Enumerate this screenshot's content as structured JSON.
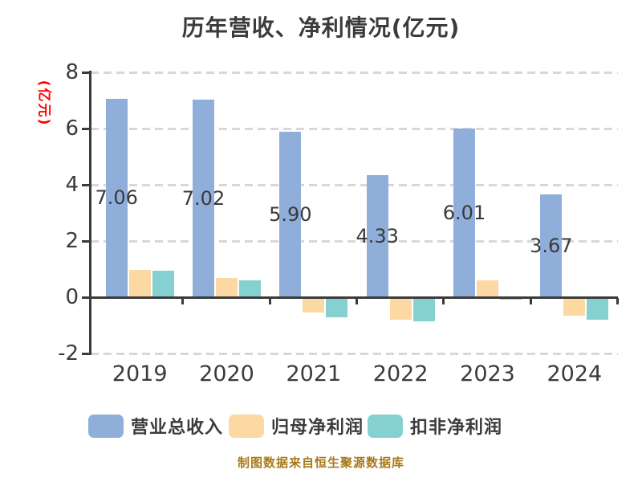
{
  "title": "历年营收、净利情况(亿元)",
  "caption": "制图数据来自恒生聚源数据库",
  "colors": {
    "revenue": "#8FAEDA",
    "parent_net_profit": "#FCD9A3",
    "non_recurring_net_profit": "#85D1D1",
    "axis_text": "#3B3B3B",
    "gridline": "#D8D8D8",
    "y_axis_label": "#FF0000",
    "caption_text": "#A8791A"
  },
  "chart_data": {
    "type": "bar",
    "title": "历年营收、净利情况(亿元)",
    "ylabel": "(亿元)",
    "xlabel": "",
    "categories": [
      "2019",
      "2020",
      "2021",
      "2022",
      "2023",
      "2024"
    ],
    "series": [
      {
        "name": "营业总收入",
        "key": "revenue",
        "color": "#8FAEDA",
        "values": [
          7.06,
          7.02,
          5.9,
          4.33,
          6.01,
          3.67
        ],
        "labels": [
          "7.06",
          "7.02",
          "5.90",
          "4.33",
          "6.01",
          "3.67"
        ]
      },
      {
        "name": "归母净利润",
        "key": "parent-net-profit",
        "color": "#FCD9A3",
        "values": [
          0.97,
          0.7,
          -0.55,
          -0.8,
          0.6,
          -0.66
        ],
        "labels": []
      },
      {
        "name": "扣非净利润",
        "key": "non-recurring-net-profit",
        "color": "#85D1D1",
        "values": [
          0.95,
          0.6,
          -0.7,
          -0.86,
          -0.08,
          -0.8
        ],
        "labels": []
      }
    ],
    "yticks": [
      8,
      6,
      4,
      2,
      0,
      -2
    ],
    "ylim": [
      -2,
      8
    ],
    "grid": "dashed horizontal at y ticks except 0",
    "legend_position": "bottom"
  }
}
